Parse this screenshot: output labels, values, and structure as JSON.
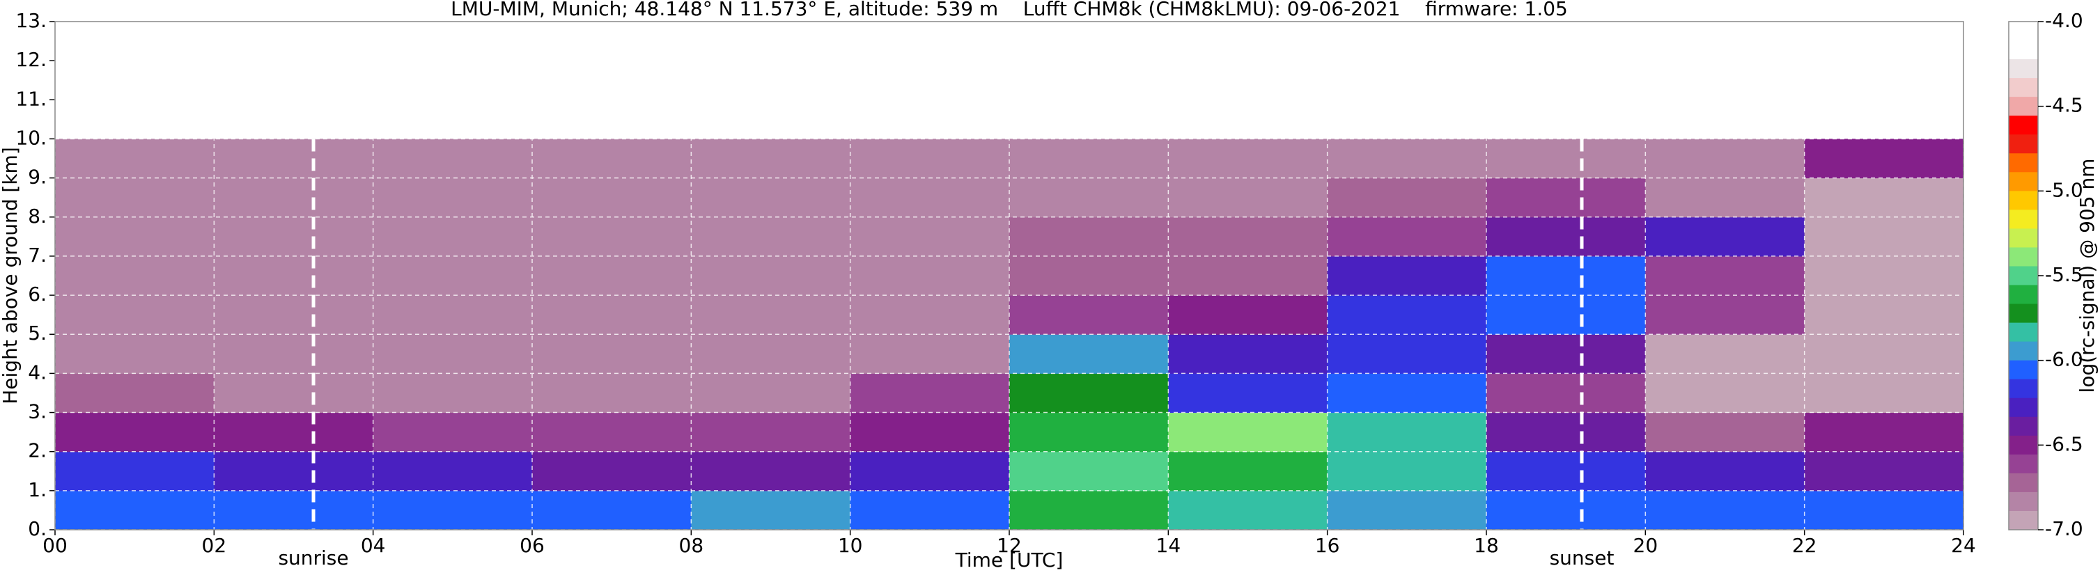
{
  "chart_data": {
    "type": "heatmap",
    "title": "LMU-MIM, Munich; 48.148° N 11.573° E, altitude: 539 m    Lufft CHM8k (CHM8kLMU): 09-06-2021    firmware: 1.05",
    "xlabel": "Time [UTC]",
    "ylabel": "Height above ground [km]",
    "colorbar_label": "log(rc-signal) @ 905 nm",
    "x": [
      1,
      3,
      5,
      7,
      9,
      11,
      13,
      15,
      17,
      19,
      21,
      23
    ],
    "y": [
      0.5,
      1.5,
      2.5,
      3.5,
      4.5,
      5.5,
      6.5,
      7.5,
      8.5,
      9.5
    ],
    "z": [
      [
        -6.1,
        -6.1,
        -6.1,
        -6.0,
        -5.9,
        -6.0,
        -5.6,
        -5.8,
        -5.9,
        -6.0,
        -6.1,
        -6.1
      ],
      [
        -6.2,
        -6.3,
        -6.3,
        -6.4,
        -6.4,
        -6.3,
        -5.5,
        -5.6,
        -5.8,
        -6.2,
        -6.3,
        -6.4
      ],
      [
        -6.5,
        -6.5,
        -6.6,
        -6.6,
        -6.6,
        -6.5,
        -5.6,
        -5.4,
        -5.8,
        -6.4,
        -6.7,
        -6.5
      ],
      [
        -6.7,
        -6.8,
        -6.8,
        -6.8,
        -6.8,
        -6.6,
        -5.7,
        -6.2,
        -6.0,
        -6.6,
        -6.9,
        -6.9
      ],
      [
        -6.8,
        -6.8,
        -6.8,
        -6.8,
        -6.8,
        -6.8,
        -5.9,
        -6.3,
        -6.2,
        -6.4,
        -6.9,
        -6.9
      ],
      [
        -6.8,
        -6.8,
        -6.8,
        -6.8,
        -6.8,
        -6.8,
        -6.6,
        -6.5,
        -6.2,
        -6.0,
        -6.6,
        -6.9
      ],
      [
        -6.8,
        -6.8,
        -6.8,
        -6.8,
        -6.8,
        -6.8,
        -6.7,
        -6.7,
        -6.3,
        -6.1,
        -6.6,
        -6.9
      ],
      [
        -6.8,
        -6.8,
        -6.8,
        -6.8,
        -6.8,
        -6.8,
        -6.7,
        -6.7,
        -6.6,
        -6.4,
        -6.3,
        -6.9
      ],
      [
        -6.8,
        -6.8,
        -6.8,
        -6.8,
        -6.8,
        -6.8,
        -6.8,
        -6.8,
        -6.7,
        -6.6,
        -6.8,
        -6.9
      ],
      [
        -6.8,
        -6.8,
        -6.8,
        -6.8,
        -6.8,
        -6.8,
        -6.8,
        -6.8,
        -6.8,
        -6.8,
        -6.8,
        -6.5
      ]
    ],
    "xlim": [
      0,
      24
    ],
    "ylim": [
      0,
      13
    ],
    "clim": [
      -7,
      -4
    ],
    "xticks": [
      {
        "value": 0,
        "label": "00"
      },
      {
        "value": 2,
        "label": "02"
      },
      {
        "value": 4,
        "label": "04"
      },
      {
        "value": 6,
        "label": "06"
      },
      {
        "value": 8,
        "label": "08"
      },
      10,
      12,
      14,
      16,
      18,
      20,
      22,
      24
    ],
    "yticks": [
      {
        "value": 0,
        "label": "0."
      },
      {
        "value": 1,
        "label": "1."
      },
      {
        "value": 2,
        "label": "2."
      },
      {
        "value": 3,
        "label": "3."
      },
      {
        "value": 4,
        "label": "4."
      },
      {
        "value": 5,
        "label": "5."
      },
      {
        "value": 6,
        "label": "6."
      },
      {
        "value": 7,
        "label": "7."
      },
      {
        "value": 8,
        "label": "8."
      },
      {
        "value": 9,
        "label": "9."
      },
      {
        "value": 10,
        "label": "10."
      },
      {
        "value": 11,
        "label": "11."
      },
      {
        "value": 12,
        "label": "12."
      },
      {
        "value": 13,
        "label": "13."
      }
    ],
    "cticks": [
      {
        "value": -4,
        "label": "-4.0"
      },
      {
        "value": -4.5,
        "label": "-4.5"
      },
      {
        "value": -5,
        "label": "-5.0"
      },
      {
        "value": -5.5,
        "label": "-5.5"
      },
      {
        "value": -6,
        "label": "-6.0"
      },
      {
        "value": -6.5,
        "label": "-6.5"
      },
      {
        "value": -7,
        "label": "-7.0"
      }
    ],
    "colors": [
      "#ffffff",
      "#ffffff",
      "#ece4e6",
      "#f2cccc",
      "#f0a8a8",
      "#ff0000",
      "#f02010",
      "#ff6a00",
      "#ff9a00",
      "#ffc800",
      "#f4ec20",
      "#c8f050",
      "#8ce878",
      "#50d28a",
      "#20b040",
      "#14901e",
      "#34c0a4",
      "#3c9cd0",
      "#2060ff",
      "#3434e0",
      "#4a20c0",
      "#6a1ea0",
      "#84208a",
      "#964294",
      "#a66496",
      "#b484a6",
      "#c4a4b6"
    ],
    "grid": true,
    "annotations": [
      {
        "text": "sunrise",
        "x": 3.25
      },
      {
        "text": "sunset",
        "x": 19.2
      }
    ]
  }
}
